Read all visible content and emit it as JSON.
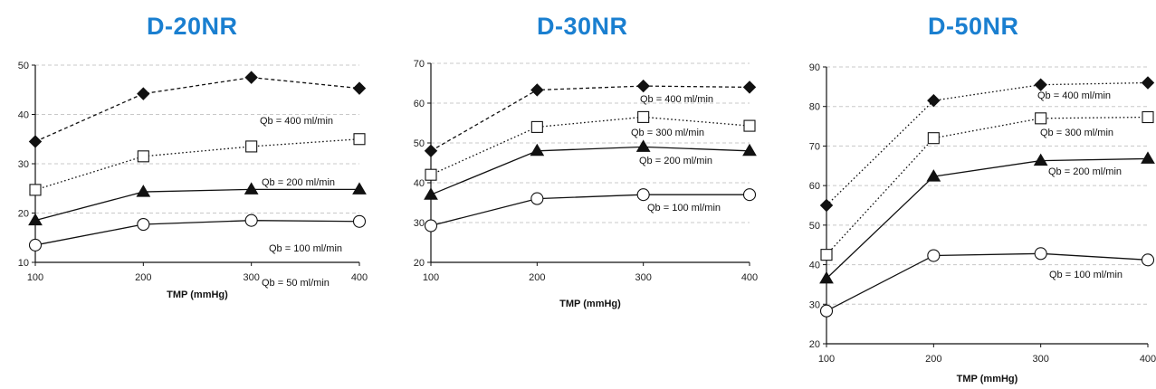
{
  "chart_data": [
    {
      "type": "line",
      "title": "D-20NR",
      "xlabel": "TMP (mmHg)",
      "ylabel": "",
      "x": [
        100,
        200,
        300,
        400
      ],
      "xticks": [
        "100",
        "200",
        "300",
        "400"
      ],
      "ylim": [
        10,
        50
      ],
      "yticks": [
        "10",
        "20",
        "30",
        "40",
        "50"
      ],
      "grid": "horizontal dashed",
      "series": [
        {
          "name": "Qb = 400 ml/min",
          "values": [
            34.5,
            44.2,
            47.5,
            45.3
          ],
          "marker": "diamond",
          "line": "dashed"
        },
        {
          "name": "Qb = 200 ml/min",
          "values": [
            24.7,
            31.5,
            33.5,
            35.0
          ],
          "marker": "open-square",
          "line": "dotted"
        },
        {
          "name": "Qb = 100 ml/min",
          "values": [
            18.5,
            24.3,
            24.8,
            24.8
          ],
          "marker": "triangle",
          "line": "solid"
        },
        {
          "name": "Qb = 50 ml/min",
          "values": [
            13.5,
            17.7,
            18.5,
            18.3
          ],
          "marker": "open-circle",
          "line": "solid"
        }
      ]
    },
    {
      "type": "line",
      "title": "D-30NR",
      "xlabel": "TMP (mmHg)",
      "ylabel": "",
      "x": [
        100,
        200,
        300,
        400
      ],
      "xticks": [
        "100",
        "200",
        "300",
        "400"
      ],
      "ylim": [
        20,
        70
      ],
      "yticks": [
        "20",
        "30",
        "40",
        "50",
        "60",
        "70"
      ],
      "grid": "horizontal dashed",
      "series": [
        {
          "name": "Qb = 400 ml/min",
          "values": [
            48.0,
            63.3,
            64.3,
            64.0
          ],
          "marker": "diamond",
          "line": "dashed"
        },
        {
          "name": "Qb = 300 ml/min",
          "values": [
            42.0,
            54.0,
            56.5,
            54.3
          ],
          "marker": "open-square",
          "line": "dotted"
        },
        {
          "name": "Qb = 200 ml/min",
          "values": [
            37.0,
            48.0,
            49.0,
            48.0
          ],
          "marker": "triangle",
          "line": "solid"
        },
        {
          "name": "Qb = 100 ml/min",
          "values": [
            29.2,
            36.0,
            37.0,
            37.0
          ],
          "marker": "open-circle",
          "line": "solid"
        }
      ]
    },
    {
      "type": "line",
      "title": "D-50NR",
      "xlabel": "TMP (mmHg)",
      "ylabel": "",
      "x": [
        100,
        200,
        300,
        400
      ],
      "xticks": [
        "100",
        "200",
        "300",
        "400"
      ],
      "ylim": [
        20,
        90
      ],
      "yticks": [
        "20",
        "30",
        "40",
        "50",
        "60",
        "70",
        "80",
        "90"
      ],
      "grid": "horizontal dashed",
      "series": [
        {
          "name": "Qb = 400 ml/min",
          "values": [
            55.0,
            81.5,
            85.5,
            86.0
          ],
          "marker": "diamond",
          "line": "dotted"
        },
        {
          "name": "Qb = 300 ml/min",
          "values": [
            42.5,
            72.0,
            77.0,
            77.3
          ],
          "marker": "open-square",
          "line": "dotted"
        },
        {
          "name": "Qb = 200 ml/min",
          "values": [
            36.5,
            62.3,
            66.3,
            66.8
          ],
          "marker": "triangle",
          "line": "solid"
        },
        {
          "name": "Qb = 100 ml/min",
          "values": [
            28.3,
            42.3,
            42.8,
            41.2
          ],
          "marker": "open-circle",
          "line": "solid"
        }
      ]
    }
  ],
  "colors": {
    "title": "#1a7fd0",
    "line": "#111111",
    "grid": "#c8c8c8"
  }
}
